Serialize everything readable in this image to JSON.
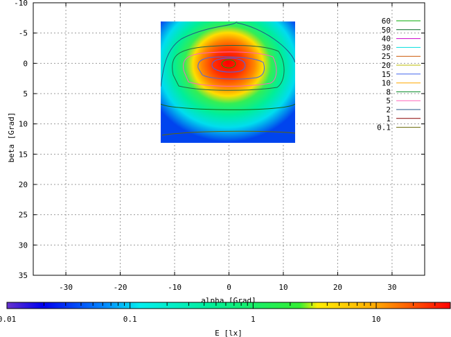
{
  "chart_data": {
    "type": "heatmap",
    "xlabel": "alpha [Grad]",
    "ylabel": "beta [Grad]",
    "xlim": [
      -36,
      36
    ],
    "ylim": [
      35,
      -10
    ],
    "x_ticks": [
      -30,
      -20,
      -10,
      0,
      10,
      20,
      30
    ],
    "y_ticks": [
      -10,
      -5,
      0,
      5,
      10,
      15,
      20,
      25,
      30,
      35
    ],
    "x_tick_labels": [
      "-30",
      "-20",
      "-10",
      "0",
      "10",
      "20",
      "30"
    ],
    "y_tick_labels": [
      "-10",
      "-5",
      "0",
      "5",
      "10",
      "15",
      "20",
      "25",
      "30",
      "35"
    ],
    "grid": true,
    "heatmap_extent": {
      "alpha": [
        -12,
        12
      ],
      "beta": [
        -7,
        13
      ]
    },
    "peak": {
      "alpha": 0,
      "beta": 0
    },
    "contour_levels": [
      "60",
      "50",
      "40",
      "30",
      "25",
      "20",
      "15",
      "10",
      "8",
      "5",
      "2",
      "1",
      "0.1"
    ],
    "contour_colors": [
      "#00aa00",
      "#006622",
      "#cc00cc",
      "#00dddd",
      "#cc5500",
      "#bbbb00",
      "#4466ee",
      "#ffaa00",
      "#008822",
      "#ff66bb",
      "#225588",
      "#880000",
      "#666600"
    ],
    "legend_position": "right",
    "colorbar": {
      "label": "E [lx]",
      "scale": "log",
      "range": [
        0.01,
        40
      ],
      "tick_labels": [
        "0.01",
        "0.1",
        "1",
        "10"
      ],
      "tick_values": [
        0.01,
        0.1,
        1,
        10
      ]
    }
  }
}
